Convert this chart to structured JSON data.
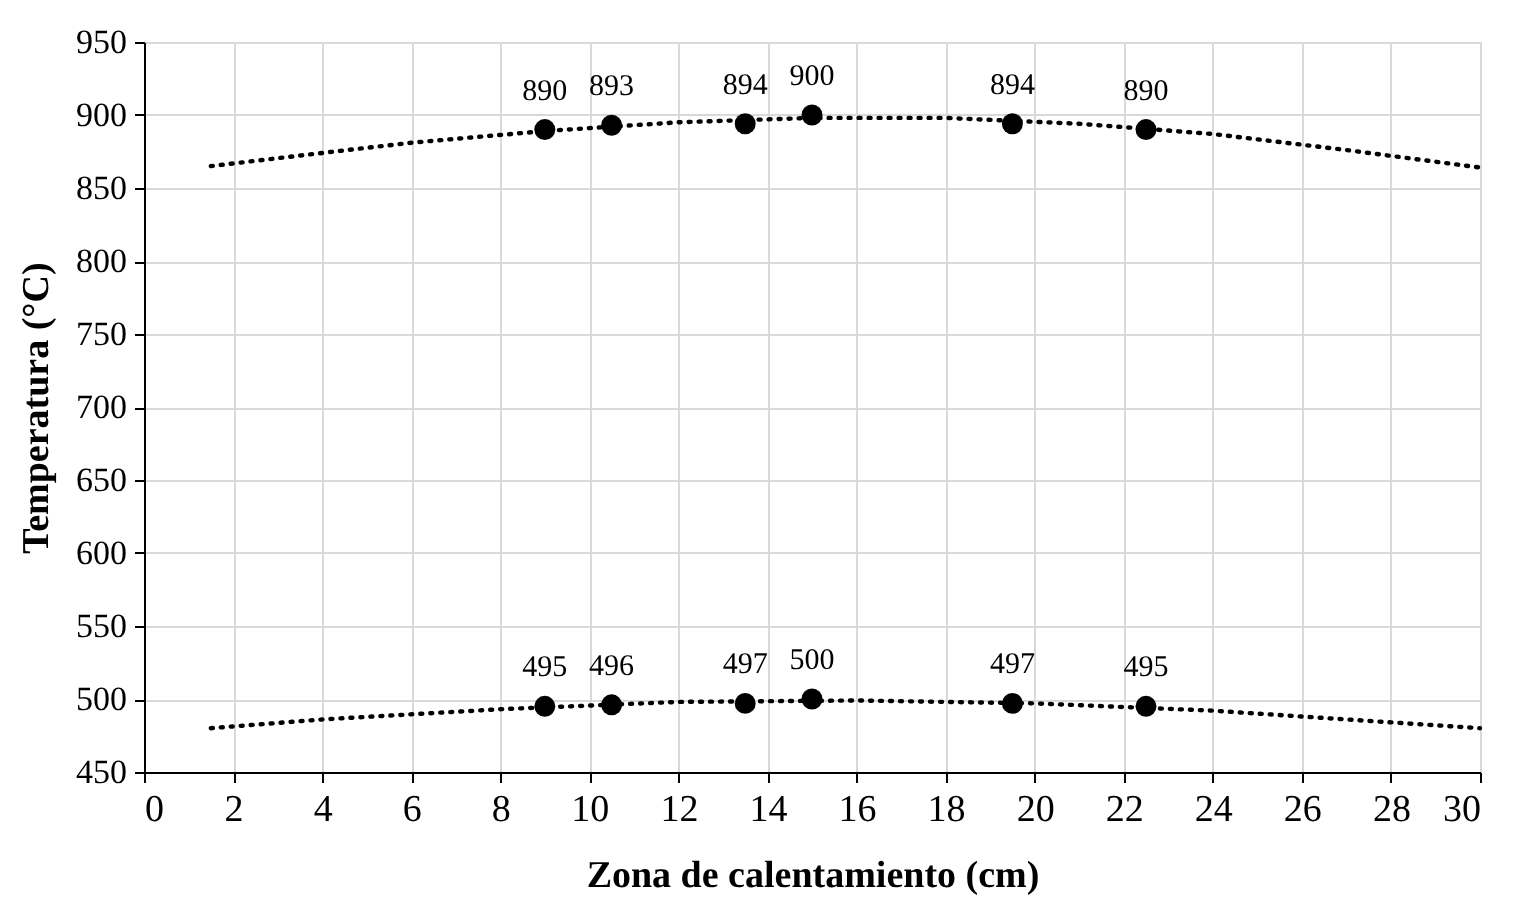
{
  "chart_data": {
    "type": "scatter",
    "xlabel": "Zona de calentamiento (cm)",
    "ylabel": "Temperatura (°C)",
    "xlim": [
      0,
      30
    ],
    "xticks": [
      0,
      2,
      4,
      6,
      8,
      10,
      12,
      14,
      16,
      18,
      20,
      22,
      24,
      26,
      28,
      30
    ],
    "ylim": [
      450,
      950
    ],
    "yticks": [
      450,
      500,
      550,
      600,
      650,
      700,
      750,
      800,
      850,
      900,
      950
    ],
    "grid": true,
    "series": [
      {
        "type": "line",
        "line_style": "dotted",
        "marker": "none",
        "color": "#000000",
        "x": [
          1.5,
          4,
          6,
          9,
          12,
          15,
          18,
          21,
          24,
          27,
          30
        ],
        "values": [
          865,
          874,
          881,
          889,
          895,
          898,
          898,
          894,
          887,
          876,
          864
        ]
      },
      {
        "type": "line",
        "line_style": "dotted",
        "marker": "none",
        "color": "#000000",
        "x": [
          1.5,
          4,
          8,
          12,
          16,
          20,
          24,
          28,
          30
        ],
        "values": [
          480,
          486,
          493,
          498,
          499,
          497,
          492,
          484,
          480
        ]
      },
      {
        "marker": "circle",
        "data_labels": true,
        "color": "#000000",
        "x": [
          9,
          10.5,
          13.5,
          15,
          19.5,
          22.5
        ],
        "values": [
          890,
          893,
          894,
          900,
          894,
          890
        ]
      },
      {
        "marker": "circle",
        "data_labels": true,
        "color": "#000000",
        "x": [
          9,
          10.5,
          13.5,
          15,
          19.5,
          22.5
        ],
        "values": [
          495,
          496,
          497,
          500,
          497,
          495
        ]
      }
    ]
  }
}
